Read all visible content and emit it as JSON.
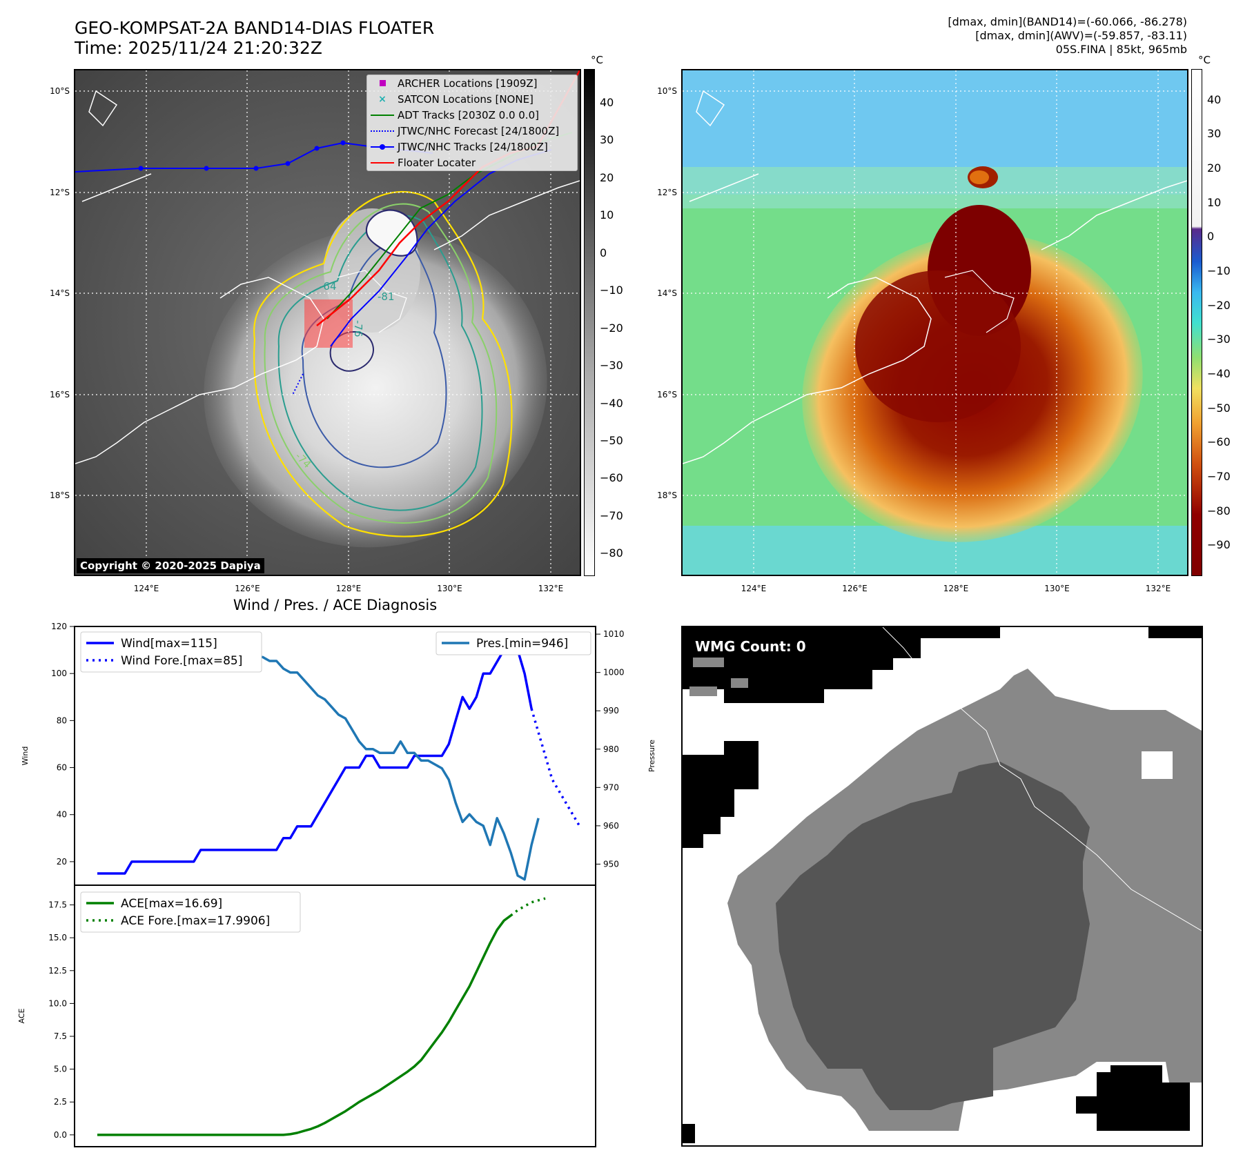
{
  "header": {
    "title_line1": "GEO-KOMPSAT-2A BAND14-DIAS FLOATER",
    "title_line2": "Time: 2025/11/24 21:20:32Z",
    "info_line1": "[dmax, dmin](BAND14)=(-60.066, -86.278)",
    "info_line2": "[dmax, dmin](AWV)=(-59.857, -83.11)",
    "info_line3": "05S.FINA | 85kt, 965mb"
  },
  "map": {
    "lat_labels": [
      "10°S",
      "12°S",
      "14°S",
      "16°S",
      "18°S"
    ],
    "lon_labels": [
      "124°E",
      "126°E",
      "128°E",
      "130°E",
      "132°E"
    ],
    "copyright": "Copyright © 2020-2025 Dapiya",
    "contour_labels": [
      "-64",
      "-81",
      "-76",
      "-74"
    ],
    "legend": [
      {
        "label": "ARCHER Locations [1909Z]",
        "color": "#c000c0"
      },
      {
        "label": "SATCON Locations [NONE]",
        "color": "#20b0b0"
      },
      {
        "label": "ADT Tracks [2030Z 0.0 0.0]",
        "color": "#008000"
      },
      {
        "label": "JTWC/NHC Forecast [24/1800Z]",
        "color": "#0000ff"
      },
      {
        "label": "JTWC/NHC Tracks [24/1800Z]",
        "color": "#0000ff"
      },
      {
        "label": "Floater Locater",
        "color": "#ff0000"
      }
    ]
  },
  "colorbar_gray": {
    "unit": "°C",
    "ticks": [
      "40",
      "30",
      "20",
      "10",
      "0",
      "−10",
      "−20",
      "−30",
      "−40",
      "−50",
      "−60",
      "−70",
      "−80"
    ]
  },
  "colorbar_color": {
    "unit": "°C",
    "ticks": [
      "40",
      "30",
      "20",
      "10",
      "0",
      "−10",
      "−20",
      "−30",
      "−40",
      "−50",
      "−60",
      "−70",
      "−80",
      "−90"
    ]
  },
  "wmg": {
    "label": "WMG Count: 0"
  },
  "chart_data": [
    {
      "type": "line",
      "title": "Wind / Pres. / ACE Diagnosis",
      "ylabel": "Wind",
      "y2label": "Pressure",
      "ylim": [
        10,
        120
      ],
      "y2lim": [
        944.5,
        1012
      ],
      "yticks": [
        "20",
        "40",
        "60",
        "80",
        "100",
        "120"
      ],
      "y2ticks": [
        "950",
        "960",
        "970",
        "980",
        "990",
        "1000",
        "1010"
      ],
      "series": [
        {
          "name": "Wind[max=115]",
          "color": "#0000ff",
          "style": "solid",
          "values": [
            15,
            15,
            15,
            15,
            15,
            20,
            20,
            20,
            20,
            20,
            20,
            20,
            20,
            20,
            20,
            25,
            25,
            25,
            25,
            25,
            25,
            25,
            25,
            25,
            25,
            25,
            25,
            30,
            30,
            35,
            35,
            35,
            40,
            45,
            50,
            55,
            60,
            60,
            60,
            65,
            65,
            60,
            60,
            60,
            60,
            60,
            65,
            65,
            65,
            65,
            65,
            70,
            80,
            90,
            85,
            90,
            100,
            100,
            105,
            110,
            115,
            110,
            100,
            85
          ]
        },
        {
          "name": "Wind Fore.[max=85]",
          "color": "#0000ff",
          "style": "dotted",
          "start_index": 63,
          "values": [
            85,
            75,
            65,
            55,
            50,
            45,
            40,
            35
          ]
        },
        {
          "name": "Pres.[min=946]",
          "color": "#1f77b4",
          "style": "solid",
          "axis": "right",
          "values": [
            1008,
            1008,
            1008,
            1008,
            1008,
            1008,
            1007,
            1007,
            1006,
            1006,
            1006,
            1006,
            1005,
            1005,
            1005,
            1005,
            1005,
            1005,
            1005,
            1005,
            1005,
            1005,
            1005,
            1004,
            1004,
            1003,
            1003,
            1001,
            1000,
            1000,
            998,
            996,
            994,
            993,
            991,
            989,
            988,
            985,
            982,
            980,
            980,
            979,
            979,
            979,
            982,
            979,
            979,
            977,
            977,
            976,
            975,
            972,
            966,
            961,
            963,
            961,
            960,
            955,
            962,
            958,
            953,
            947,
            946,
            955,
            962
          ]
        },
        {
          "name": "ACE[max=16.69]",
          "color": "#008000",
          "style": "solid",
          "panel": "ace",
          "values": [
            0,
            0,
            0,
            0,
            0,
            0,
            0,
            0,
            0,
            0,
            0,
            0,
            0,
            0,
            0,
            0,
            0,
            0,
            0,
            0,
            0,
            0,
            0,
            0,
            0,
            0,
            0,
            0,
            0.05,
            0.15,
            0.3,
            0.45,
            0.65,
            0.9,
            1.2,
            1.5,
            1.8,
            2.15,
            2.5,
            2.8,
            3.1,
            3.4,
            3.75,
            4.1,
            4.45,
            4.8,
            5.2,
            5.7,
            6.4,
            7.1,
            7.8,
            8.6,
            9.5,
            10.4,
            11.3,
            12.4,
            13.5,
            14.6,
            15.6,
            16.3,
            16.69
          ]
        },
        {
          "name": "ACE Fore.[max=17.9906]",
          "color": "#008000",
          "style": "dotted",
          "panel": "ace",
          "start_index": 60,
          "values": [
            16.69,
            17.1,
            17.4,
            17.7,
            17.85,
            17.99
          ]
        }
      ],
      "ace_ylabel": "ACE",
      "ace_ylim": [
        -0.9,
        19
      ],
      "ace_yticks": [
        "0.0",
        "2.5",
        "5.0",
        "7.5",
        "10.0",
        "12.5",
        "15.0",
        "17.5"
      ]
    }
  ]
}
